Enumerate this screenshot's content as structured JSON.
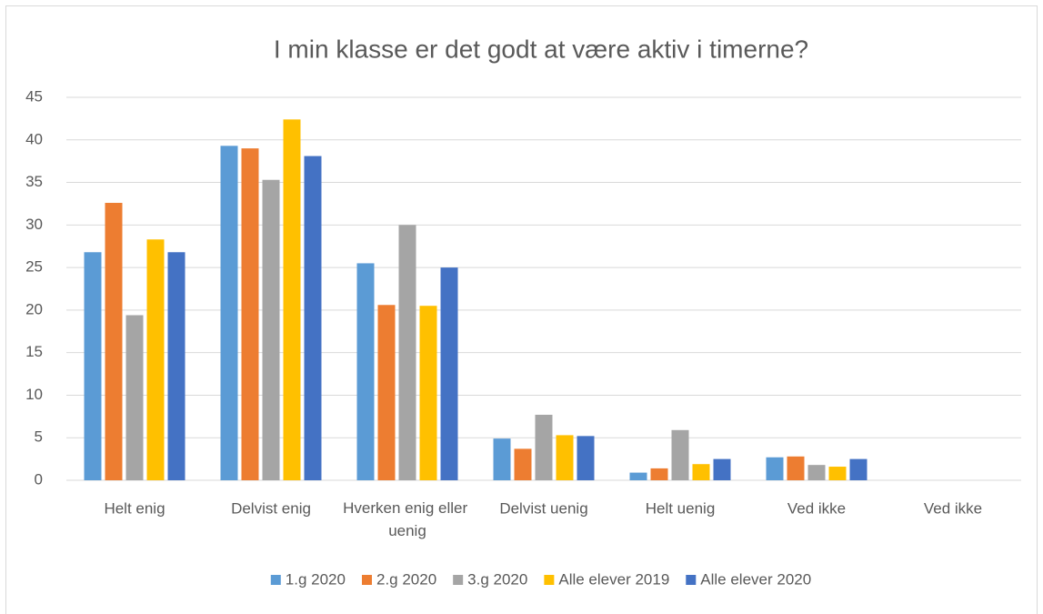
{
  "chart_data": {
    "type": "bar",
    "title": "I min klasse er det godt at være aktiv i timerne?",
    "categories": [
      "Helt enig",
      "Delvist enig",
      "Hverken enig eller uenig",
      "Delvist uenig",
      "Helt uenig",
      "Ved ikke",
      "Ved ikke"
    ],
    "series": [
      {
        "name": "1.g 2020",
        "color": "#5b9bd5",
        "values": [
          26.8,
          39.3,
          25.5,
          4.9,
          0.9,
          2.7,
          null
        ]
      },
      {
        "name": "2.g 2020",
        "color": "#ed7d31",
        "values": [
          32.6,
          39.0,
          20.6,
          3.7,
          1.4,
          2.8,
          null
        ]
      },
      {
        "name": "3.g 2020",
        "color": "#a5a5a5",
        "values": [
          19.4,
          35.3,
          30.0,
          7.7,
          5.9,
          1.8,
          null
        ]
      },
      {
        "name": "Alle elever 2019",
        "color": "#ffc000",
        "values": [
          28.3,
          42.4,
          20.5,
          5.3,
          1.9,
          1.6,
          null
        ]
      },
      {
        "name": "Alle elever 2020",
        "color": "#4472c4",
        "values": [
          26.8,
          38.1,
          25.0,
          5.2,
          2.5,
          2.5,
          null
        ]
      }
    ],
    "ylim": [
      0,
      45
    ],
    "yticks": [
      0,
      5,
      10,
      15,
      20,
      25,
      30,
      35,
      40,
      45
    ],
    "grid": true,
    "legend": "bottom"
  }
}
